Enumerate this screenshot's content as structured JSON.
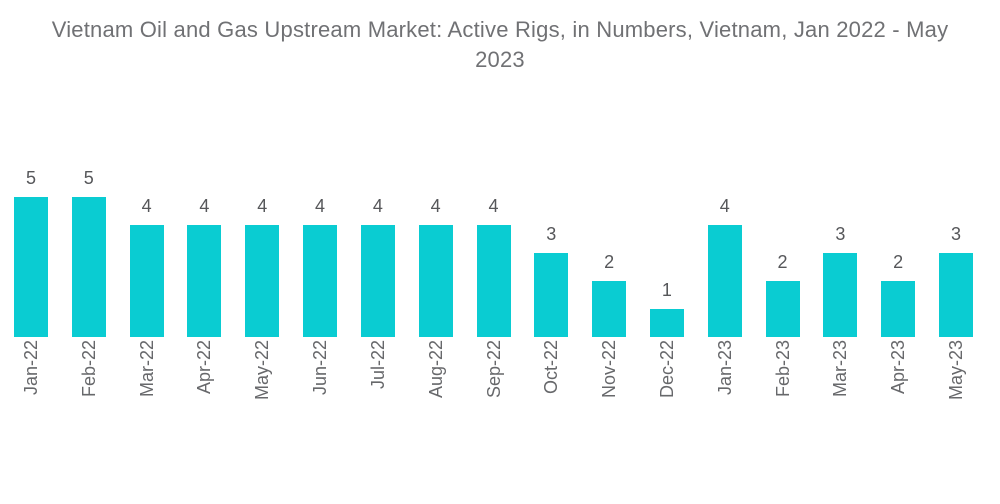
{
  "header": {
    "lines": [
      "Vietnam Oil and Gas Upstream Market: Active Rigs, in Numbers, Vietnam, Jan 2022 - May",
      "2023"
    ]
  },
  "colors": {
    "bar": "#0accd2",
    "title_text": "#707174",
    "value_label_text": "#56575a",
    "axis_label_text": "#67686b",
    "background": "#ffffff"
  },
  "chart_data": {
    "type": "bar",
    "title": "Vietnam Oil and Gas Upstream Market: Active Rigs, in Numbers, Vietnam, Jan 2022 - May 2023",
    "categories": [
      "Jan-22",
      "Feb-22",
      "Mar-22",
      "Apr-22",
      "May-22",
      "Jun-22",
      "Jul-22",
      "Aug-22",
      "Sep-22",
      "Oct-22",
      "Nov-22",
      "Dec-22",
      "Jan-23",
      "Feb-23",
      "Mar-23",
      "Apr-23",
      "May-23"
    ],
    "values": [
      5,
      5,
      4,
      4,
      4,
      4,
      4,
      4,
      4,
      3,
      2,
      1,
      4,
      2,
      3,
      2,
      3
    ],
    "xlabel": "",
    "ylabel": "",
    "ylim": [
      0,
      5
    ],
    "grid": false,
    "legend": "none",
    "data_labels": true,
    "x_tick_rotation_deg": 90
  }
}
